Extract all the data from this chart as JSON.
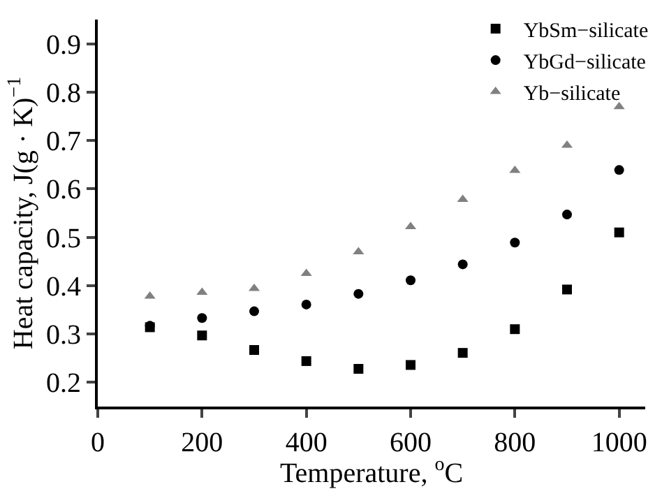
{
  "chart_data": {
    "type": "scatter",
    "xlabel": "Temperature, $^{o}$C",
    "ylabel": "Heat capacity, J(g · K)$^{−1}$",
    "x": [
      100,
      200,
      300,
      400,
      500,
      600,
      700,
      800,
      900,
      1000
    ],
    "series": [
      {
        "name": "YbSm−silicate",
        "color": "#000000",
        "marker": "square",
        "values": [
          0.314,
          0.297,
          0.267,
          0.244,
          0.228,
          0.236,
          0.261,
          0.31,
          0.392,
          0.51
        ]
      },
      {
        "name": "YbGd−silicate",
        "color": "#000000",
        "marker": "circle",
        "values": [
          0.317,
          0.333,
          0.347,
          0.361,
          0.383,
          0.411,
          0.444,
          0.489,
          0.547,
          0.639
        ]
      },
      {
        "name": "Yb−silicate",
        "color": "#808080",
        "marker": "triangle",
        "values": [
          0.378,
          0.386,
          0.394,
          0.425,
          0.47,
          0.522,
          0.578,
          0.638,
          0.69,
          0.77
        ]
      }
    ],
    "xlim": [
      0,
      1050
    ],
    "xticks": [
      0,
      200,
      400,
      600,
      800,
      1000
    ],
    "ylim": [
      0.15,
      0.95
    ],
    "yticks": [
      0.2,
      0.3,
      0.4,
      0.5,
      0.6,
      0.7,
      0.8,
      0.9
    ],
    "grid": false,
    "legend": "top right"
  }
}
